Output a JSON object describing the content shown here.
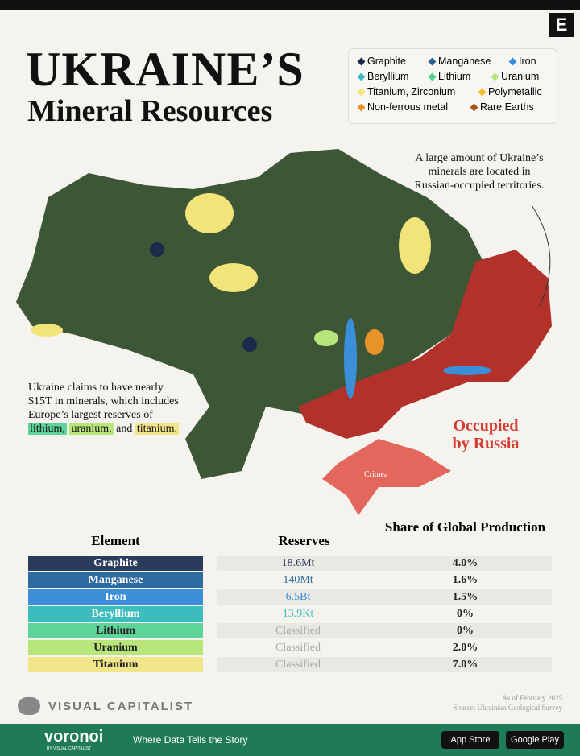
{
  "header": {
    "logo": "E",
    "title_line1": "UKRAINE’S",
    "title_line2": "Mineral Resources"
  },
  "legend": [
    {
      "label": "Graphite",
      "color": "#1b2a4a"
    },
    {
      "label": "Manganese",
      "color": "#2d5f8f"
    },
    {
      "label": "Iron",
      "color": "#3b8fd9"
    },
    {
      "label": "Beryllium",
      "color": "#3bb8c0"
    },
    {
      "label": "Lithium",
      "color": "#4fd08a"
    },
    {
      "label": "Uranium",
      "color": "#b6e67a"
    },
    {
      "label": "Titanium, Zirconium",
      "color": "#f3e47a"
    },
    {
      "label": "Polymetallic",
      "color": "#f0c030"
    },
    {
      "label": "Non-ferrous metal",
      "color": "#e8932a"
    },
    {
      "label": "Rare Earths",
      "color": "#a8561c"
    }
  ],
  "map": {
    "annotation": "A large amount of Ukraine’s minerals are located in Russian-occupied territories.",
    "claim_text": "Ukraine claims to have nearly $15T in minerals, which includes Europe’s largest reserves of",
    "claim_lithium": "lithium,",
    "claim_uranium": "uranium,",
    "claim_and": "and",
    "claim_titanium": "titanium.",
    "occupied_label": "Occupied by Russia",
    "crimea_label": "Crimea"
  },
  "table": {
    "columns": [
      "Element",
      "Reserves",
      "Share of Global Production"
    ],
    "rows": [
      {
        "element": "Graphite",
        "reserves": "18.6Mt",
        "share": "4.0%",
        "color": "#2b3b5e"
      },
      {
        "element": "Manganese",
        "reserves": "140Mt",
        "share": "1.6%",
        "color": "#2d6aa0"
      },
      {
        "element": "Iron",
        "reserves": "6.5Bt",
        "share": "1.5%",
        "color": "#3a8fd8"
      },
      {
        "element": "Beryllium",
        "reserves": "13.9Kt",
        "share": "0%",
        "color": "#3cbcbc"
      },
      {
        "element": "Lithium",
        "reserves": "Classified",
        "share": "0%",
        "color": "#5ed49a"
      },
      {
        "element": "Uranium",
        "reserves": "Classified",
        "share": "2.0%",
        "color": "#b8e67a"
      },
      {
        "element": "Titanium",
        "reserves": "Classified",
        "share": "7.0%",
        "color": "#f2e68a"
      }
    ]
  },
  "footer": {
    "brand": "VISUAL CAPITALIST",
    "date": "As of February 2025",
    "source": "Source: Ukrainian Geological Survey"
  },
  "banner": {
    "brand": "voronoi",
    "sub": "BY VISUAL CAPITALIST",
    "tagline": "Where Data Tells the Story",
    "app_store": "App Store",
    "google_play": "Google Play"
  }
}
